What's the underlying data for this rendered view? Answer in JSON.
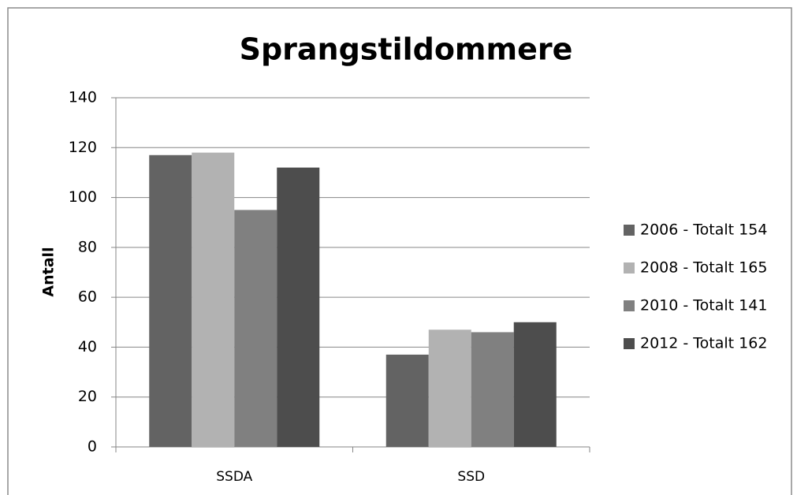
{
  "chart_data": {
    "type": "bar",
    "title": "Sprangstildommere",
    "y_label": "Antall",
    "categories": [
      "SSDA",
      "SSD"
    ],
    "series": [
      {
        "name": "2006 - Totalt 154",
        "color": "#636363",
        "values": [
          117,
          37
        ]
      },
      {
        "name": "2008 - Totalt 165",
        "color": "#b2b2b2",
        "values": [
          118,
          47
        ]
      },
      {
        "name": "2010 - Totalt 141",
        "color": "#808080",
        "values": [
          95,
          46
        ]
      },
      {
        "name": "2012 - Totalt 162",
        "color": "#4d4d4d",
        "values": [
          112,
          50
        ]
      }
    ],
    "ylim": [
      0,
      140
    ],
    "yticks": [
      0,
      20,
      40,
      60,
      80,
      100,
      120,
      140
    ],
    "grid": true,
    "legend": "right"
  }
}
